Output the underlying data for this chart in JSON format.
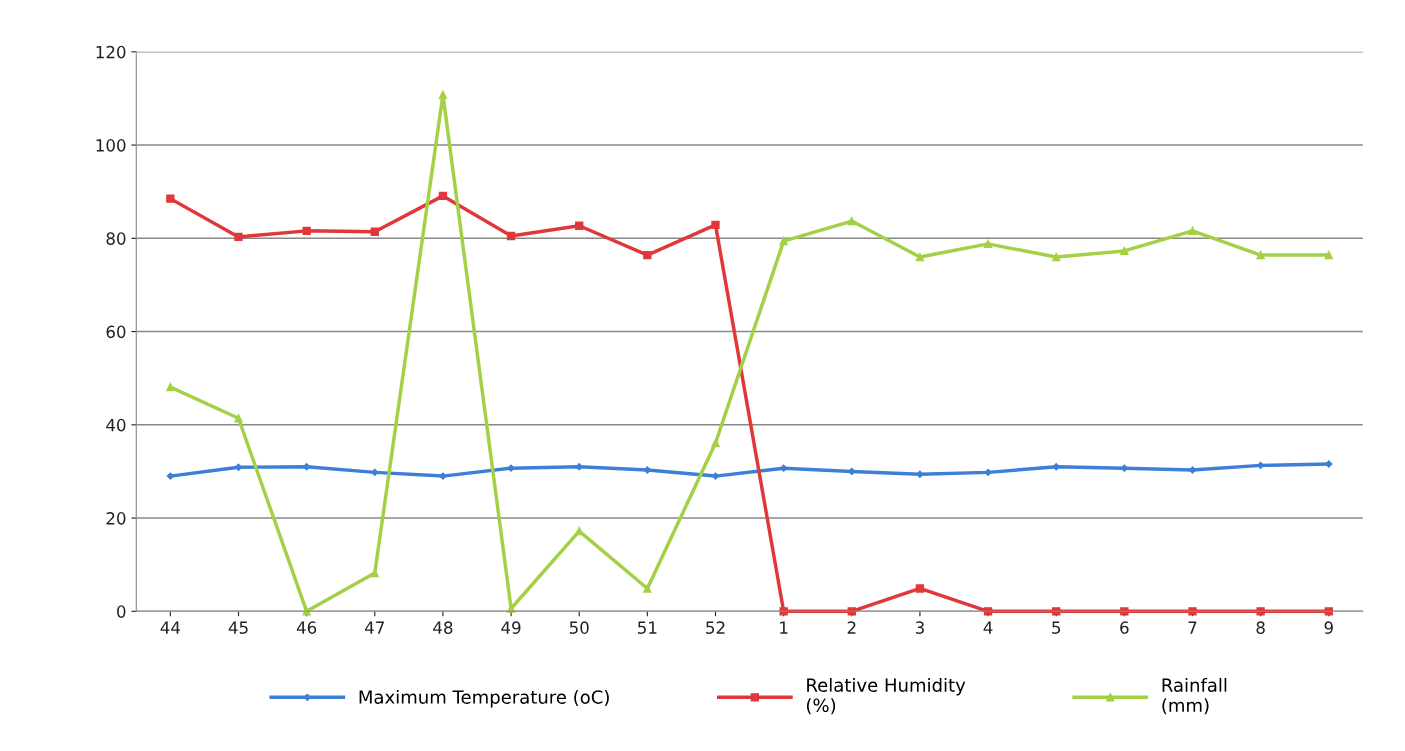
{
  "chart_data": {
    "type": "line",
    "categories": [
      "44",
      "45",
      "46",
      "47",
      "48",
      "49",
      "50",
      "51",
      "52",
      "1",
      "2",
      "3",
      "4",
      "5",
      "6",
      "7",
      "8",
      "9"
    ],
    "series": [
      {
        "name": "Maximum Temperature (oC)",
        "color": "#3d7fd6",
        "marker": "diamond",
        "values": [
          29.0,
          30.9,
          31.0,
          29.8,
          29.0,
          30.7,
          31.0,
          30.3,
          29.0,
          30.7,
          30.0,
          29.4,
          29.8,
          31.0,
          30.7,
          30.3,
          31.3,
          31.6
        ]
      },
      {
        "name": "Relative Humidity\n(%)",
        "color": "#e0383a",
        "marker": "square",
        "values": [
          88.5,
          80.3,
          81.6,
          81.4,
          89.1,
          80.5,
          82.7,
          76.4,
          82.9,
          0,
          0,
          4.9,
          0,
          0,
          0,
          0,
          0,
          0
        ]
      },
      {
        "name": "Rainfall\n(mm)",
        "color": "#a3d045",
        "marker": "triangle",
        "values": [
          48.1,
          41.4,
          0,
          8.2,
          110.8,
          0.6,
          17.2,
          4.9,
          36.1,
          79.4,
          83.7,
          76.0,
          78.8,
          76.0,
          77.3,
          81.6,
          76.4,
          76.4
        ]
      }
    ],
    "ylim": [
      0,
      120
    ],
    "yticks": [
      0,
      20,
      40,
      60,
      80,
      100,
      120
    ],
    "grid": "y",
    "legend": "bottom",
    "line_style": "solid"
  }
}
